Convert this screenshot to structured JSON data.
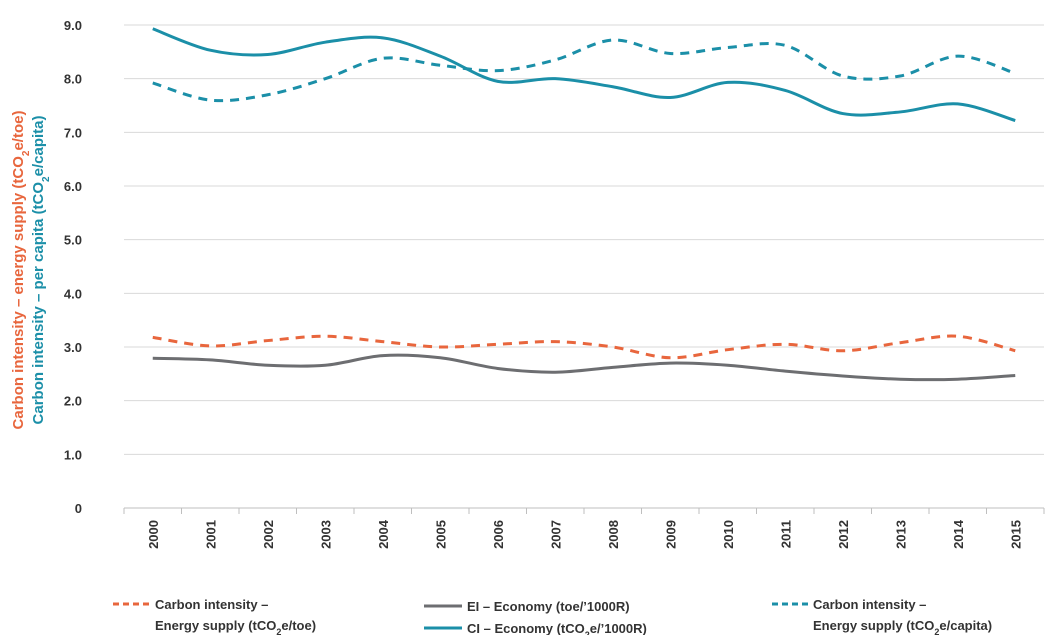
{
  "chart_data": {
    "type": "line",
    "x": [
      "2000",
      "2001",
      "2002",
      "2003",
      "2004",
      "2005",
      "2006",
      "2007",
      "2008",
      "2009",
      "2010",
      "2011",
      "2012",
      "2013",
      "2014",
      "2015"
    ],
    "ylim": [
      0,
      9
    ],
    "yticks": [
      "0",
      "1.0",
      "2.0",
      "3.0",
      "4.0",
      "5.0",
      "6.0",
      "7.0",
      "8.0",
      "9.0"
    ],
    "ylabel_primary_parts": [
      "Carbon intensity – energy supply (tCO",
      "2",
      "e/toe)"
    ],
    "ylabel_secondary_parts": [
      "Carbon intensity – per capita (tCO",
      "2",
      "e/capita)"
    ],
    "grid": true,
    "legend_position": "bottom",
    "series": [
      {
        "key": "ci_energy_toe",
        "color": "#E8663D",
        "dash": true,
        "values": [
          3.18,
          3.02,
          3.12,
          3.2,
          3.1,
          3.0,
          3.05,
          3.1,
          3.0,
          2.8,
          2.95,
          3.05,
          2.93,
          3.08,
          3.2,
          2.93
        ]
      },
      {
        "key": "ei_economy",
        "color": "#6D6E71",
        "dash": false,
        "values": [
          2.79,
          2.76,
          2.66,
          2.66,
          2.84,
          2.8,
          2.6,
          2.53,
          2.62,
          2.7,
          2.66,
          2.55,
          2.46,
          2.4,
          2.4,
          2.47
        ]
      },
      {
        "key": "ci_economy",
        "color": "#1B8FA8",
        "dash": false,
        "values": [
          8.93,
          8.53,
          8.45,
          8.68,
          8.76,
          8.42,
          7.95,
          8.0,
          7.85,
          7.65,
          7.93,
          7.78,
          7.35,
          7.38,
          7.53,
          7.22
        ]
      },
      {
        "key": "ci_energy_capita",
        "color": "#1B8FA8",
        "dash": true,
        "values": [
          7.92,
          7.6,
          7.7,
          8.0,
          8.38,
          8.25,
          8.15,
          8.35,
          8.72,
          8.47,
          8.58,
          8.62,
          8.05,
          8.05,
          8.42,
          8.1
        ]
      }
    ],
    "legend": [
      {
        "key": "ci_energy_toe",
        "line1": "Carbon intensity –",
        "line2_pre": "Energy supply (tCO",
        "line2_sub": "2",
        "line2_post": "e/toe)"
      },
      {
        "key": "ei_economy",
        "line1": "EI – Economy (toe/’1000R)"
      },
      {
        "key": "ci_economy",
        "line1_pre": "CI – Economy (tCO",
        "line1_sub": "2",
        "line1_post": "e/’1000R)"
      },
      {
        "key": "ci_energy_capita",
        "line1": "Carbon intensity –",
        "line2_pre": "Energy supply (tCO",
        "line2_sub": "2",
        "line2_post": "e/capita)"
      }
    ],
    "colors": {
      "orange": "#E8663D",
      "teal": "#1B8FA8",
      "grey": "#6D6E71",
      "grid": "#D9D9D9"
    }
  }
}
